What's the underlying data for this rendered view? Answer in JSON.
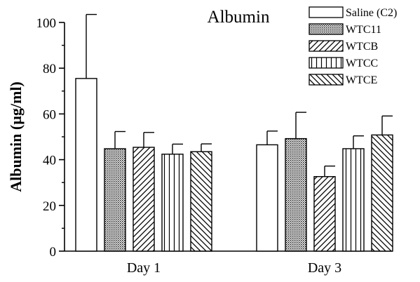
{
  "chart_data": {
    "type": "bar",
    "title": "Albumin",
    "ylabel": "Albumin (µg/ml)",
    "xlabel": "",
    "ylim": [
      0,
      100
    ],
    "yticks": [
      0,
      20,
      40,
      60,
      80,
      100
    ],
    "categories": [
      "Day 1",
      "Day 3"
    ],
    "legend_position": "top-right",
    "series": [
      {
        "name": "Saline (C2)",
        "pattern": "none",
        "values": [
          75.5,
          46.5
        ],
        "error": [
          28,
          6
        ]
      },
      {
        "name": "WTC11",
        "pattern": "dots",
        "values": [
          44.8,
          49.2
        ],
        "error": [
          7.5,
          11.5
        ]
      },
      {
        "name": "WTCB",
        "pattern": "diag-up",
        "values": [
          45.4,
          32.6
        ],
        "error": [
          6.5,
          4.6
        ]
      },
      {
        "name": "WTCC",
        "pattern": "vertical",
        "values": [
          42.4,
          44.8
        ],
        "error": [
          4.4,
          5.6
        ]
      },
      {
        "name": "WTCE",
        "pattern": "diag-down",
        "values": [
          43.5,
          50.8
        ],
        "error": [
          3.4,
          8.3
        ]
      }
    ],
    "colors": {
      "stroke": "#000000",
      "fill": "#ffffff"
    }
  }
}
